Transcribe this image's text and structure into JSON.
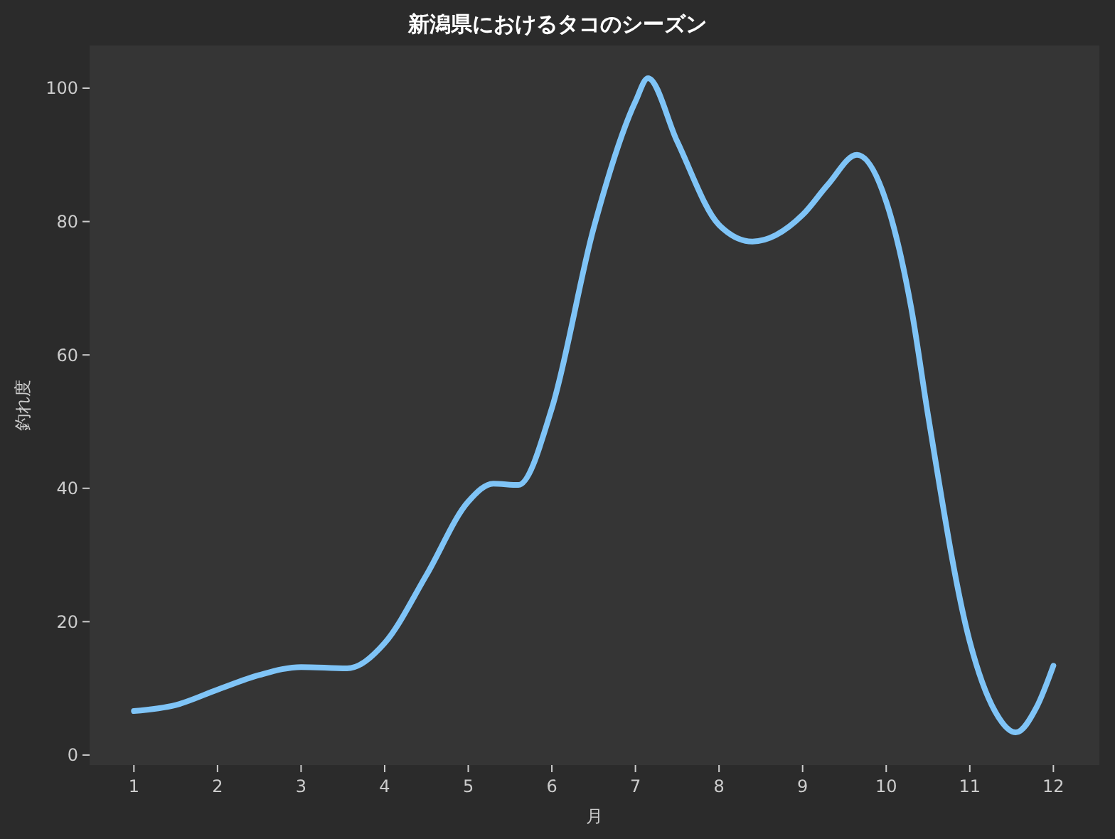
{
  "chart_data": {
    "type": "line",
    "title": "新潟県におけるタコのシーズン",
    "xlabel": "月",
    "ylabel": "釣れ度",
    "x": [
      1,
      1.5,
      2,
      2.5,
      3,
      3.55,
      4,
      4.5,
      5,
      5.3,
      5.6,
      6,
      6.5,
      7,
      7.15,
      7.5,
      8,
      8.4,
      9,
      9.3,
      9.65,
      10,
      10.3,
      10.5,
      11,
      11.3,
      11.55,
      11.8,
      12
    ],
    "series": [
      {
        "color": "#7fc4f7",
        "values": [
          6.6,
          7.5,
          9.8,
          12,
          13.2,
          13,
          16.8,
          27,
          38,
          40.7,
          40.5,
          52,
          79,
          98,
          101.5,
          92,
          79.5,
          77,
          81,
          85.5,
          90,
          83,
          67,
          51,
          17,
          6.6,
          3.4,
          7.2,
          13.4
        ]
      }
    ],
    "xlim": [
      0.47,
      12.55
    ],
    "ylim": [
      -1.5,
      106.4
    ],
    "xticks": [
      1,
      2,
      3,
      4,
      5,
      6,
      7,
      8,
      9,
      10,
      11,
      12
    ],
    "yticks": [
      0,
      20,
      40,
      60,
      80,
      100
    ],
    "grid": false,
    "marker": "none",
    "line_style": "solid"
  }
}
